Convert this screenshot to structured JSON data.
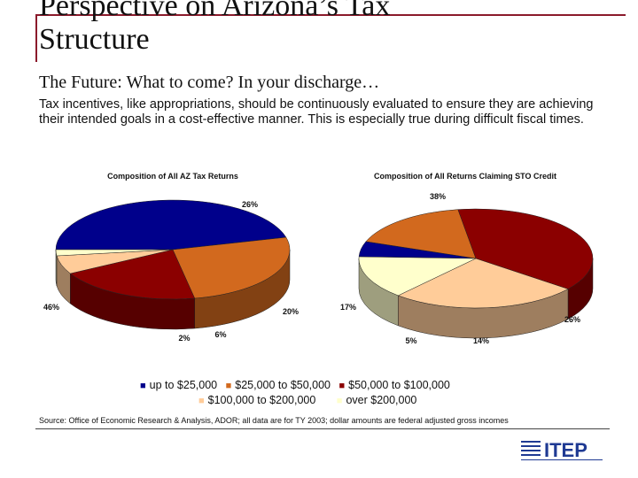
{
  "slide": {
    "title": "Perspective on Arizona’s Tax Structure",
    "subtitle": "The Future:  What to come?  In your discharge…",
    "body": "Tax incentives, like appropriations, should be continuously evaluated to ensure they are achieving their intended goals in a cost-effective manner.  This is especially true during difficult fiscal times.",
    "source": "Source:  Office of Economic Research & Analysis, ADOR; all data are for TY 2003; dollar amounts are federal adjusted gross incomes",
    "logo_text": "ITEP"
  },
  "legend": [
    {
      "label": "up to $25,000",
      "color": "#00008b"
    },
    {
      "label": "$25,000 to $50,000",
      "color": "#d2691e"
    },
    {
      "label": "$50,000 to $100,000",
      "color": "#8b0000"
    },
    {
      "label": "$100,000 to $200,000",
      "color": "#ffcc99"
    },
    {
      "label": "over $200,000",
      "color": "#ffffcc"
    }
  ],
  "chart_data": [
    {
      "type": "pie",
      "title": "Composition of All AZ Tax Returns",
      "categories": [
        "up to $25,000",
        "$25,000 to $50,000",
        "$50,000 to $100,000",
        "$100,000 to $200,000",
        "over $200,000"
      ],
      "values": [
        46,
        26,
        20,
        6,
        2
      ],
      "labels": [
        "46%",
        "26%",
        "20%",
        "6%",
        "2%"
      ],
      "colors": [
        "#00008b",
        "#d2691e",
        "#8b0000",
        "#ffcc99",
        "#ffffcc"
      ]
    },
    {
      "type": "pie",
      "title": "Composition of All Returns Claiming STO Credit",
      "categories": [
        "up to $25,000",
        "$25,000 to $50,000",
        "$50,000 to $100,000",
        "$100,000 to $200,000",
        "over $200,000"
      ],
      "values": [
        5,
        17,
        38,
        26,
        14
      ],
      "labels": [
        "5%",
        "17%",
        "38%",
        "26%",
        "14%"
      ],
      "colors": [
        "#00008b",
        "#d2691e",
        "#8b0000",
        "#ffcc99",
        "#ffffcc"
      ]
    }
  ]
}
